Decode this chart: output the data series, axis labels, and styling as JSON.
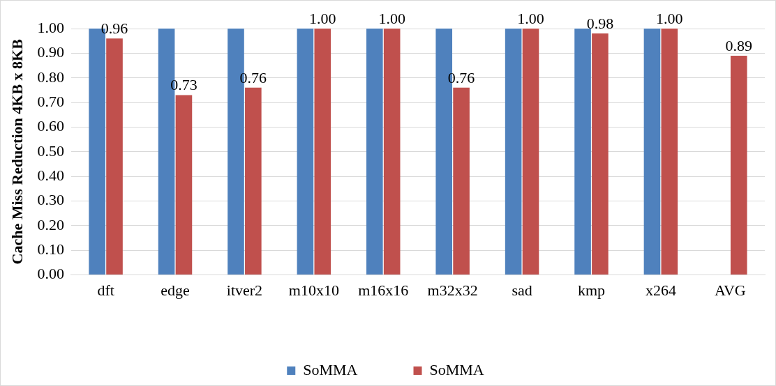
{
  "chart_data": {
    "type": "bar",
    "ylabel": "Cache Miss Reduction 4KB x 8KB",
    "categories": [
      "dft",
      "edge",
      "itver2",
      "m10x10",
      "m16x16",
      "m32x32",
      "sad",
      "kmp",
      "x264",
      "AVG"
    ],
    "series": [
      {
        "name": "SoMMA",
        "color": "#4f81bd",
        "values": [
          1,
          1,
          1,
          1,
          1,
          1,
          1,
          1,
          1,
          null
        ]
      },
      {
        "name": "SoMMA",
        "color": "#c0504d",
        "values": [
          0.96,
          0.73,
          0.76,
          1.0,
          1.0,
          0.76,
          1.0,
          0.98,
          1.0,
          0.89
        ],
        "value_labels": [
          "0.96",
          "0.73",
          "0.76",
          "1.00",
          "1.00",
          "0.76",
          "1.00",
          "0.98",
          "1.00",
          "0.89"
        ]
      }
    ],
    "ylim": [
      0,
      1
    ],
    "yticks": [
      {
        "value": 0,
        "label": "0.00"
      },
      {
        "value": 0.1,
        "label": "0.10"
      },
      {
        "value": 0.2,
        "label": "0.20"
      },
      {
        "value": 0.3,
        "label": "0.30"
      },
      {
        "value": 0.4,
        "label": "0.40"
      },
      {
        "value": 0.5,
        "label": "0.50"
      },
      {
        "value": 0.6,
        "label": "0.60"
      },
      {
        "value": 0.7,
        "label": "0.70"
      },
      {
        "value": 0.8,
        "label": "0.80"
      },
      {
        "value": 0.9,
        "label": "0.90"
      },
      {
        "value": 1,
        "label": "1.00"
      }
    ],
    "grid": "y",
    "legend": "bottom"
  }
}
